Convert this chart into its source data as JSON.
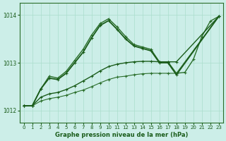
{
  "title": "Graphe pression niveau de la mer (hPa)",
  "bg_color": "#cceee8",
  "grid_color": "#aaddcc",
  "ylim": [
    1011.75,
    1014.25
  ],
  "yticks": [
    1012,
    1013,
    1014
  ],
  "xlim": [
    -0.5,
    23.5
  ],
  "xticks": [
    0,
    1,
    2,
    3,
    4,
    5,
    6,
    7,
    8,
    9,
    10,
    11,
    12,
    13,
    14,
    15,
    16,
    17,
    18,
    19,
    20,
    21,
    22,
    23
  ],
  "series": [
    {
      "x": [
        0,
        1,
        2,
        3,
        4,
        5,
        6,
        7,
        8,
        9,
        10,
        11,
        12,
        13,
        14,
        15,
        16,
        17,
        18,
        19,
        20,
        21,
        22,
        23
      ],
      "y": [
        1012.1,
        1012.1,
        1012.45,
        1012.72,
        1012.68,
        1012.82,
        1013.05,
        1013.28,
        1013.58,
        1013.82,
        1013.92,
        1013.75,
        1013.55,
        1013.38,
        1013.33,
        1013.28,
        1013.02,
        1013.02,
        1012.78,
        1012.8,
        1013.07,
        1013.55,
        1013.87,
        1013.97
      ],
      "color": "#2a6e2a",
      "lw": 1.0,
      "marker": "+"
    },
    {
      "x": [
        0,
        1,
        2,
        3,
        4,
        5,
        6,
        7,
        8,
        9,
        10,
        11,
        12,
        13,
        14,
        15,
        16,
        17,
        18,
        23
      ],
      "y": [
        1012.1,
        1012.1,
        1012.2,
        1012.25,
        1012.28,
        1012.32,
        1012.38,
        1012.43,
        1012.5,
        1012.58,
        1012.65,
        1012.7,
        1012.72,
        1012.75,
        1012.77,
        1012.78,
        1012.78,
        1012.78,
        1012.78,
        1013.97
      ],
      "color": "#2a6e2a",
      "lw": 0.8,
      "marker": "+"
    },
    {
      "x": [
        0,
        1,
        2,
        3,
        4,
        5,
        6,
        7,
        8,
        9,
        10,
        11,
        12,
        13,
        14,
        15,
        16,
        17,
        18,
        23
      ],
      "y": [
        1012.1,
        1012.1,
        1012.28,
        1012.35,
        1012.38,
        1012.44,
        1012.52,
        1012.62,
        1012.72,
        1012.83,
        1012.92,
        1012.97,
        1013.0,
        1013.02,
        1013.03,
        1013.03,
        1013.02,
        1013.02,
        1013.02,
        1013.97
      ],
      "color": "#1a5c1a",
      "lw": 1.0,
      "marker": "+"
    },
    {
      "x": [
        0,
        1,
        2,
        3,
        4,
        5,
        6,
        7,
        8,
        9,
        10,
        11,
        12,
        13,
        14,
        15,
        16,
        17,
        18,
        23
      ],
      "y": [
        1012.1,
        1012.1,
        1012.45,
        1012.68,
        1012.65,
        1012.78,
        1013.0,
        1013.22,
        1013.52,
        1013.78,
        1013.88,
        1013.7,
        1013.5,
        1013.35,
        1013.3,
        1013.25,
        1013.0,
        1013.0,
        1012.75,
        1013.97
      ],
      "color": "#1a5c1a",
      "lw": 1.3,
      "marker": "+"
    }
  ]
}
